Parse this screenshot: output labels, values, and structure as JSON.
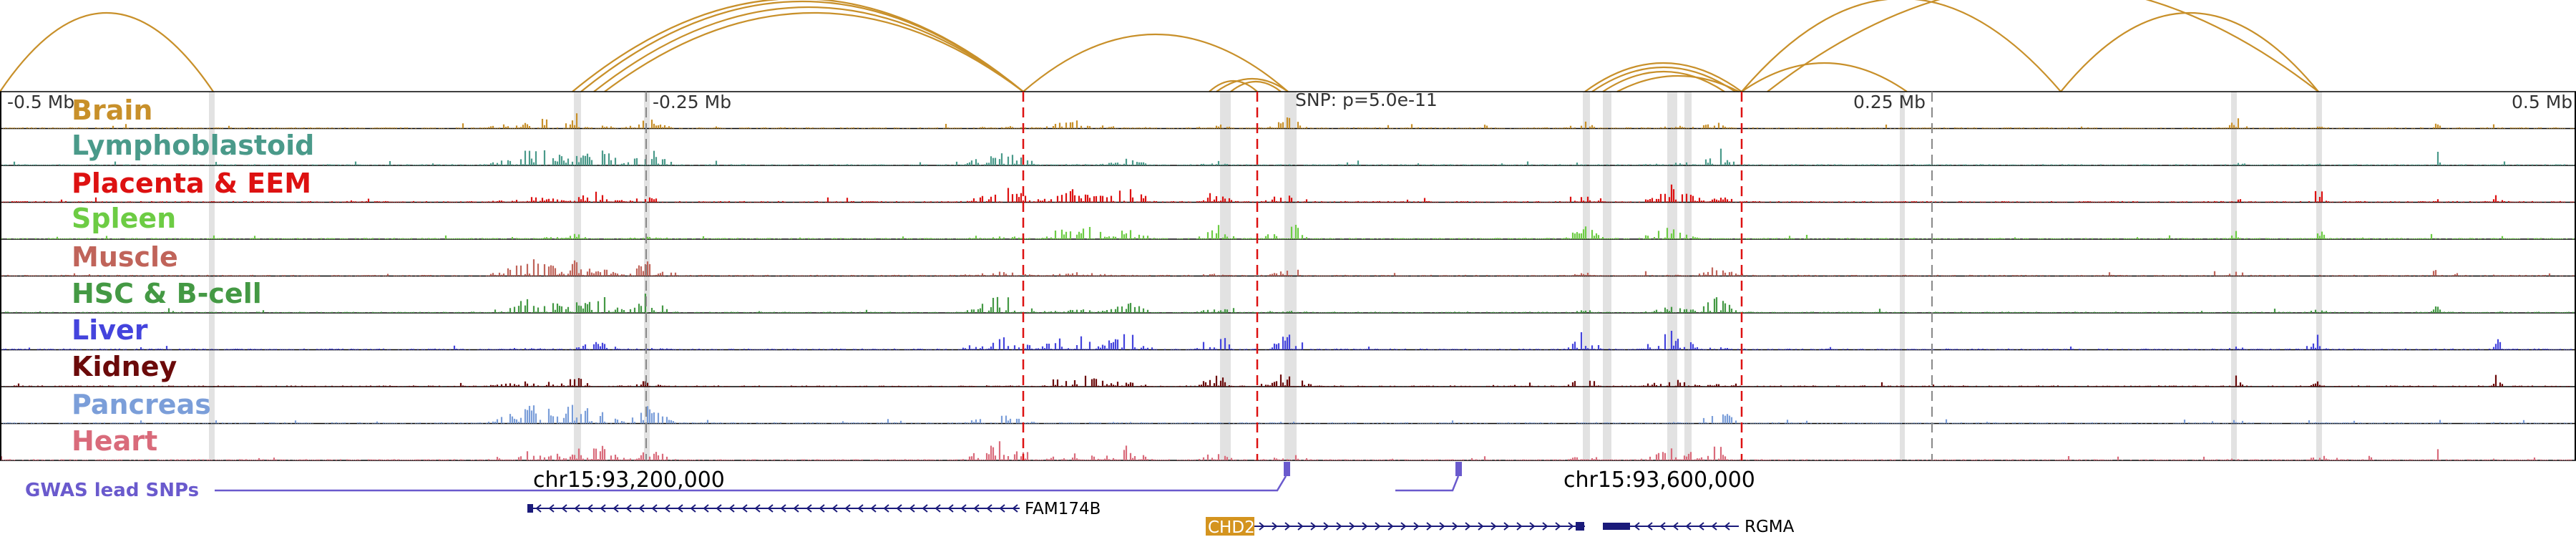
{
  "axis": {
    "left_label": "-0.5 Mb",
    "mid_left_label": "-0.25 Mb",
    "snp_label": "SNP: p=5.0e-11",
    "mid_right_label": "0.25 Mb",
    "right_label": "0.5 Mb"
  },
  "coordinates": {
    "left": "chr15:93,200,000",
    "right": "chr15:93,600,000"
  },
  "gwas": {
    "label": "GWAS lead SNPs",
    "color": "#6a5acd"
  },
  "genes": [
    {
      "name": "FAM174B",
      "strand": "-",
      "highlight": false
    },
    {
      "name": "CHD2",
      "strand": "+",
      "highlight": true,
      "highlight_color": "#d4941f"
    },
    {
      "name": "RGMA",
      "strand": "-",
      "highlight": false
    }
  ],
  "arc_color": "#c8902a",
  "chart_data": {
    "type": "area",
    "title": "",
    "xlabel": "",
    "ylabel": "",
    "xlim_mb": [
      -0.5,
      0.5
    ],
    "x_ticks": [
      "-0.5 Mb",
      "-0.25 Mb",
      "0.25 Mb",
      "0.5 Mb"
    ],
    "series": [
      {
        "name": "Brain",
        "color": "#c8902a"
      },
      {
        "name": "Lymphoblastoid",
        "color": "#4a9a8a"
      },
      {
        "name": "Placenta & EEM",
        "color": "#dd1111"
      },
      {
        "name": "Spleen",
        "color": "#6dcc44"
      },
      {
        "name": "Muscle",
        "color": "#c0645a"
      },
      {
        "name": "HSC & B-cell",
        "color": "#449944"
      },
      {
        "name": "Liver",
        "color": "#4444dd"
      },
      {
        "name": "Kidney",
        "color": "#6b0a0a"
      },
      {
        "name": "Pancreas",
        "color": "#7b9ed9"
      },
      {
        "name": "Heart",
        "color": "#d96b7b"
      }
    ]
  }
}
